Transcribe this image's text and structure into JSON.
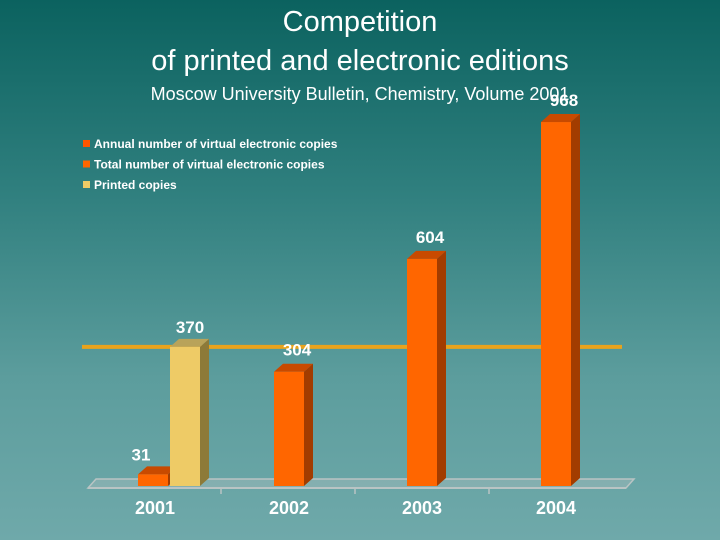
{
  "slide": {
    "title_line1": "Competition",
    "title_line2": "of printed and electronic editions",
    "subtitle": "Moscow University Bulletin, Chemistry,  Volume 2001"
  },
  "colors": {
    "electronic_bar": "#ff6600",
    "electronic_side": "#a23c00",
    "electronic_top": "#c84a00",
    "printed_bar": "#eecb66",
    "printed_side": "#8d7a38",
    "printed_top": "#b8a35a",
    "reference_line": "#e8a31c",
    "annual_legend": "#ff5500",
    "label_text": "#ffffff",
    "axis": "#b9c4c4"
  },
  "chart_data": {
    "type": "bar",
    "title": "",
    "xlabel": "",
    "ylabel": "",
    "categories": [
      "2001",
      "2002",
      "2003",
      "2004"
    ],
    "ylim": [
      0,
      1000
    ],
    "legend": [
      "Annual number of virtual electronic copies",
      "Total number of virtual electronic copies",
      "Printed copies"
    ],
    "legend_position": "top-left",
    "series": [
      {
        "name": "Total number of virtual electronic copies",
        "values": [
          31,
          304,
          604,
          968
        ]
      },
      {
        "name": "Printed copies",
        "values": [
          370,
          null,
          null,
          null
        ]
      }
    ],
    "data_labels": [
      "31",
      "370",
      "304",
      "604",
      "968"
    ],
    "reference_line": 370
  }
}
